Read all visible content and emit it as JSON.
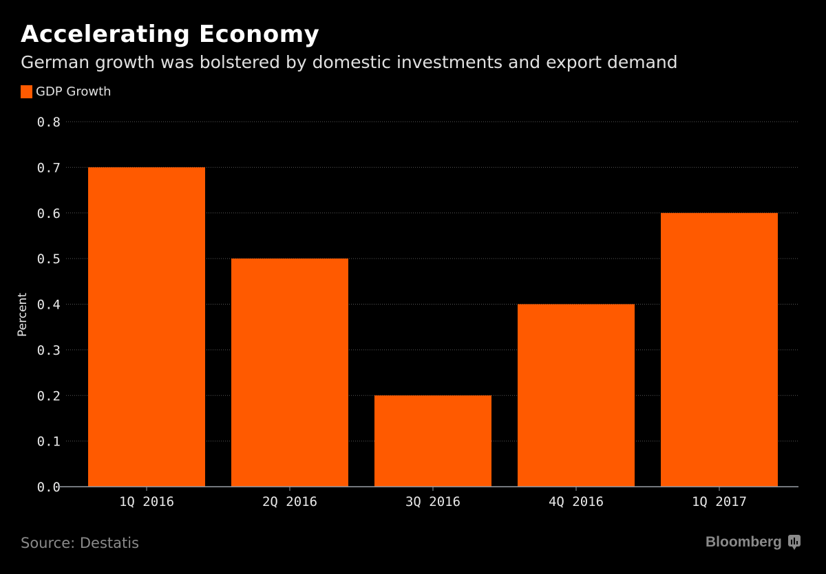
{
  "chart_data": {
    "type": "bar",
    "title": "Accelerating Economy",
    "subtitle": "German growth was bolstered by domestic investments and export demand",
    "categories": [
      "1Q 2016",
      "2Q 2016",
      "3Q 2016",
      "4Q 2016",
      "1Q 2017"
    ],
    "series": [
      {
        "name": "GDP Growth",
        "values": [
          0.7,
          0.5,
          0.2,
          0.4,
          0.6
        ],
        "color": "#ff5a00"
      }
    ],
    "xlabel": "",
    "ylabel": "Percent",
    "ylim": [
      0,
      0.8
    ],
    "yticks": [
      "0.0",
      "0.1",
      "0.2",
      "0.3",
      "0.4",
      "0.5",
      "0.6",
      "0.7",
      "0.8"
    ],
    "grid": true,
    "legend_position": "top-left"
  },
  "footer": {
    "source": "Source: Destatis",
    "brand": "Bloomberg"
  }
}
